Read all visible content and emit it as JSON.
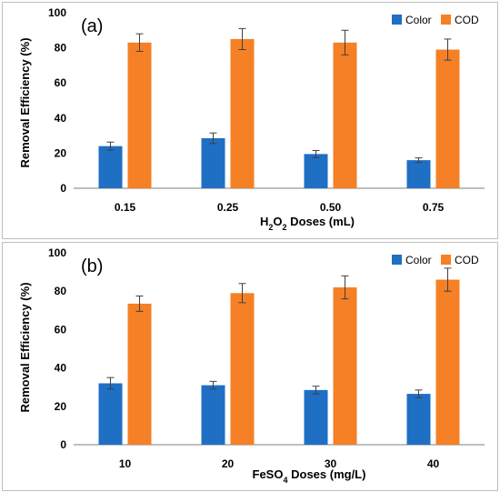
{
  "colors": {
    "color": "#1F6FC4",
    "cod": "#F58025",
    "axis": "#7f7f7f",
    "grid": "#d9d9d9"
  },
  "chart_data": [
    {
      "type": "bar",
      "panel_label": "(a)",
      "categories": [
        "0.15",
        "0.25",
        "0.50",
        "0.75"
      ],
      "xlabel": "H₂O₂ Doses (mL)",
      "xlabel_parts": {
        "pre": "H",
        "sub1": "2",
        "mid": "O",
        "sub2": "2",
        "post": " Doses (mL)"
      },
      "ylabel": "Removal Efficiency (%)",
      "ylim": [
        0,
        100
      ],
      "yticks": [
        "0",
        "20",
        "40",
        "60",
        "80",
        "100"
      ],
      "legend_position": "top-right",
      "series": [
        {
          "name": "Color",
          "values": [
            24,
            28.5,
            19.5,
            16
          ],
          "errors": [
            2.3,
            3,
            2,
            1.3
          ]
        },
        {
          "name": "COD",
          "values": [
            83,
            85,
            83,
            79
          ],
          "errors": [
            5,
            6,
            7,
            6
          ]
        }
      ]
    },
    {
      "type": "bar",
      "panel_label": "(b)",
      "categories": [
        "10",
        "20",
        "30",
        "40"
      ],
      "xlabel": "FeSO₄ Doses (mg/L)",
      "xlabel_parts": {
        "pre": "FeSO",
        "sub1": "4",
        "mid": "",
        "sub2": "",
        "post": " Doses (mg/L)"
      },
      "ylabel": "Removal Efficiency (%)",
      "ylim": [
        0,
        100
      ],
      "yticks": [
        "0",
        "20",
        "40",
        "60",
        "80",
        "100"
      ],
      "legend_position": "top-right",
      "series": [
        {
          "name": "Color",
          "values": [
            32,
            31,
            28.5,
            26.5
          ],
          "errors": [
            3,
            2,
            2,
            2
          ]
        },
        {
          "name": "COD",
          "values": [
            73.5,
            79,
            82,
            86
          ],
          "errors": [
            4,
            5,
            6,
            6
          ]
        }
      ]
    }
  ]
}
